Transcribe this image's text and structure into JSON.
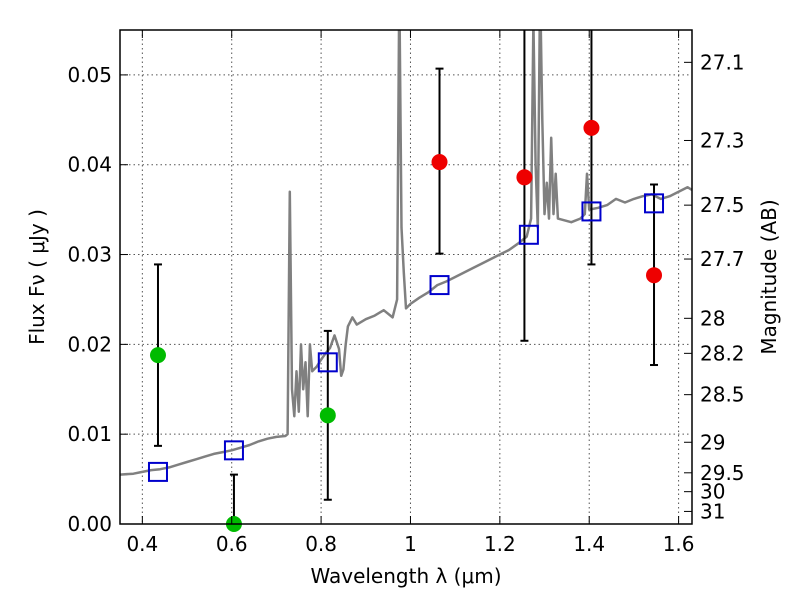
{
  "chart_data": {
    "type": "scatter",
    "xlabel": "Wavelength  λ (μm)",
    "ylabel": "Flux  Fν  ( μJy )",
    "ylabel_right": "Magnitude (AB)",
    "xlim": [
      0.35,
      1.63
    ],
    "ylim": [
      0.0,
      0.055
    ],
    "grid": true,
    "x_ticks": [
      0.4,
      0.6,
      0.8,
      1.0,
      1.2,
      1.4,
      1.6
    ],
    "x_tick_labels": [
      "0.4",
      "0.6",
      "0.8",
      "1",
      "1.2",
      "1.4",
      "1.6"
    ],
    "y_ticks": [
      0.0,
      0.01,
      0.02,
      0.03,
      0.04,
      0.05
    ],
    "y_tick_labels": [
      "0.00",
      "0.01",
      "0.02",
      "0.03",
      "0.04",
      "0.05"
    ],
    "right_ticks": [
      {
        "flux": 0.0514,
        "label": "27.1"
      },
      {
        "flux": 0.0427,
        "label": "27.3"
      },
      {
        "flux": 0.0355,
        "label": "27.5"
      },
      {
        "flux": 0.0295,
        "label": "27.7"
      },
      {
        "flux": 0.0229,
        "label": "28"
      },
      {
        "flux": 0.019,
        "label": "28.2"
      },
      {
        "flux": 0.0144,
        "label": "28.5"
      },
      {
        "flux": 0.0091,
        "label": "29"
      },
      {
        "flux": 0.0057,
        "label": "29.5"
      },
      {
        "flux": 0.0036,
        "label": "30"
      },
      {
        "flux": 0.0014,
        "label": "31"
      }
    ],
    "series": [
      {
        "marker": "circle",
        "color": "#00bb00",
        "points": [
          {
            "x": 0.435,
            "y": 0.0188,
            "yerr_low": 0.0087,
            "yerr_high": 0.0289
          },
          {
            "x": 0.605,
            "y": 0.0,
            "yerr_low": 0.0,
            "yerr_high": 0.0055
          },
          {
            "x": 0.815,
            "y": 0.0121,
            "yerr_low": 0.0027,
            "yerr_high": 0.0215
          }
        ]
      },
      {
        "marker": "circle",
        "color": "#ee0000",
        "points": [
          {
            "x": 1.065,
            "y": 0.0403,
            "yerr_low": 0.0301,
            "yerr_high": 0.0507
          },
          {
            "x": 1.255,
            "y": 0.0386,
            "yerr_low": 0.0204,
            "yerr_high": 0.056
          },
          {
            "x": 1.405,
            "y": 0.0441,
            "yerr_low": 0.0289,
            "yerr_high": 0.056
          },
          {
            "x": 1.545,
            "y": 0.0277,
            "yerr_low": 0.0177,
            "yerr_high": 0.0378
          }
        ]
      },
      {
        "marker": "open-square",
        "color": "#0000cc",
        "points": [
          {
            "x": 0.435,
            "y": 0.0058
          },
          {
            "x": 0.605,
            "y": 0.0082
          },
          {
            "x": 0.815,
            "y": 0.018
          },
          {
            "x": 1.065,
            "y": 0.0266
          },
          {
            "x": 1.265,
            "y": 0.0322
          },
          {
            "x": 1.405,
            "y": 0.0348
          },
          {
            "x": 1.545,
            "y": 0.0357
          }
        ]
      },
      {
        "marker": "line",
        "color": "#808080",
        "x": [
          0.35,
          0.38,
          0.4,
          0.42,
          0.44,
          0.46,
          0.48,
          0.5,
          0.52,
          0.54,
          0.56,
          0.58,
          0.6,
          0.62,
          0.64,
          0.66,
          0.68,
          0.7,
          0.72,
          0.725,
          0.73,
          0.735,
          0.74,
          0.745,
          0.75,
          0.755,
          0.76,
          0.765,
          0.77,
          0.775,
          0.78,
          0.79,
          0.8,
          0.81,
          0.82,
          0.83,
          0.84,
          0.845,
          0.85,
          0.855,
          0.86,
          0.87,
          0.88,
          0.9,
          0.92,
          0.94,
          0.96,
          0.97,
          0.975,
          0.98,
          0.985,
          0.99,
          1.0,
          1.02,
          1.04,
          1.06,
          1.08,
          1.1,
          1.12,
          1.14,
          1.16,
          1.18,
          1.2,
          1.22,
          1.24,
          1.26,
          1.27,
          1.275,
          1.28,
          1.285,
          1.29,
          1.295,
          1.3,
          1.305,
          1.31,
          1.315,
          1.32,
          1.325,
          1.33,
          1.36,
          1.38,
          1.39,
          1.395,
          1.4,
          1.42,
          1.44,
          1.46,
          1.48,
          1.5,
          1.52,
          1.54,
          1.56,
          1.58,
          1.6,
          1.62,
          1.63
        ],
        "y": [
          0.0055,
          0.0056,
          0.0058,
          0.006,
          0.0061,
          0.0063,
          0.0066,
          0.0069,
          0.0072,
          0.0075,
          0.0078,
          0.008,
          0.0082,
          0.0085,
          0.0088,
          0.0092,
          0.0095,
          0.0097,
          0.0098,
          0.01,
          0.037,
          0.015,
          0.012,
          0.017,
          0.0125,
          0.02,
          0.015,
          0.018,
          0.012,
          0.02,
          0.017,
          0.0175,
          0.0183,
          0.019,
          0.0196,
          0.021,
          0.0195,
          0.0165,
          0.0172,
          0.02,
          0.022,
          0.023,
          0.0222,
          0.0228,
          0.0232,
          0.0238,
          0.023,
          0.025,
          0.06,
          0.033,
          0.028,
          0.024,
          0.0245,
          0.0252,
          0.0258,
          0.0266,
          0.027,
          0.0275,
          0.028,
          0.0285,
          0.029,
          0.0295,
          0.03,
          0.0305,
          0.0312,
          0.032,
          0.034,
          0.056,
          0.04,
          0.033,
          0.06,
          0.045,
          0.0345,
          0.038,
          0.034,
          0.043,
          0.0345,
          0.039,
          0.034,
          0.0336,
          0.034,
          0.0345,
          0.039,
          0.035,
          0.0352,
          0.0355,
          0.0362,
          0.0358,
          0.0362,
          0.0365,
          0.0367,
          0.0362,
          0.0365,
          0.037,
          0.0375,
          0.0372
        ]
      }
    ]
  }
}
